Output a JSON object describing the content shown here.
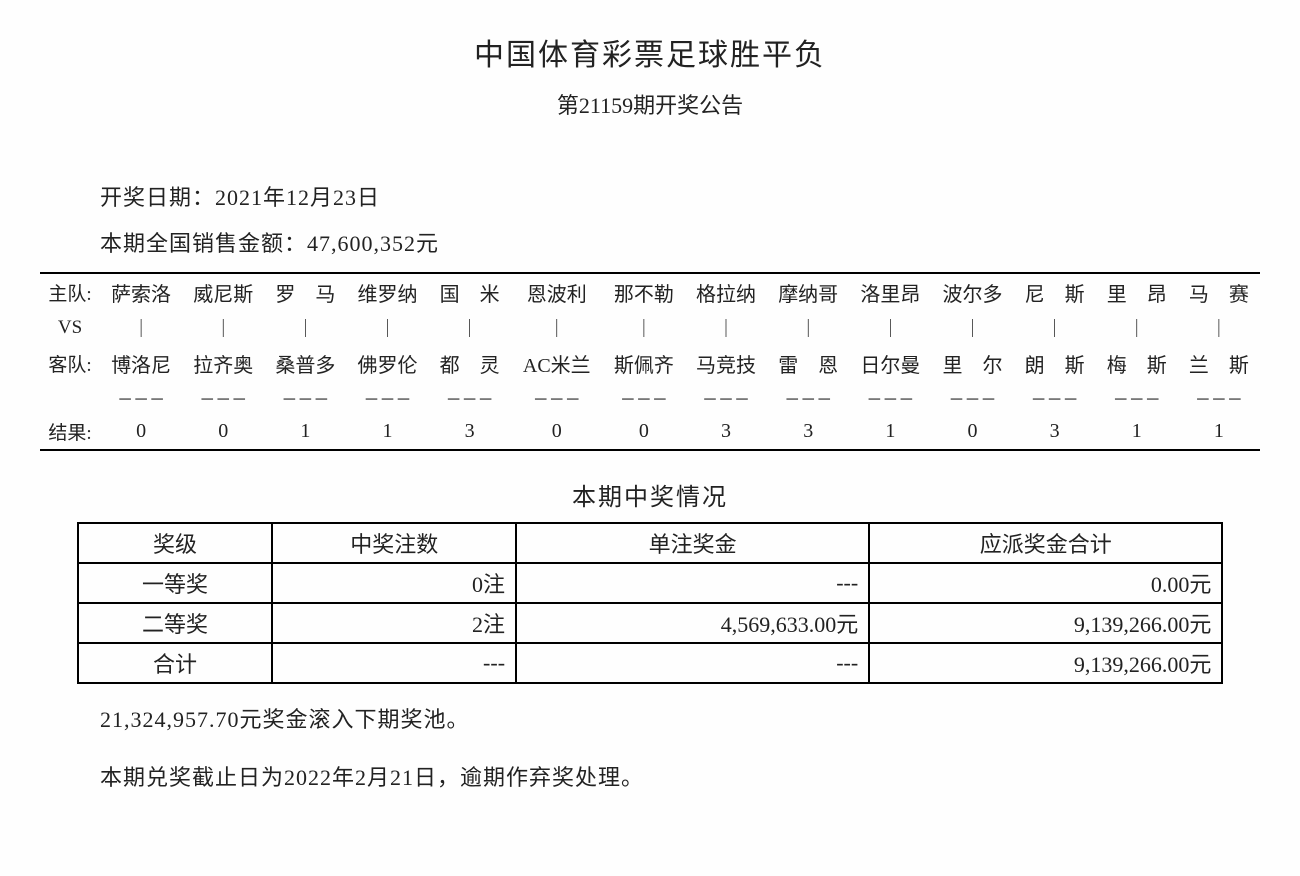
{
  "header": {
    "title": "中国体育彩票足球胜平负",
    "subtitle": "第21159期开奖公告"
  },
  "info": {
    "date_label": "开奖日期：",
    "date_value": "2021年12月23日",
    "sales_label": "本期全国销售金额：",
    "sales_value": "47,600,352元"
  },
  "match": {
    "row_labels": {
      "home": "主队:",
      "vs": "VS",
      "away": "客队:",
      "result": "结果:"
    },
    "vs_mark": "｜",
    "dash": "－－－",
    "columns": [
      {
        "home": "萨索洛",
        "away": "博洛尼",
        "result": "0"
      },
      {
        "home": "威尼斯",
        "away": "拉齐奥",
        "result": "0"
      },
      {
        "home": "罗　马",
        "away": "桑普多",
        "result": "1"
      },
      {
        "home": "维罗纳",
        "away": "佛罗伦",
        "result": "1"
      },
      {
        "home": "国　米",
        "away": "都　灵",
        "result": "3"
      },
      {
        "home": "恩波利",
        "away": "AC米兰",
        "result": "0"
      },
      {
        "home": "那不勒",
        "away": "斯佩齐",
        "result": "0"
      },
      {
        "home": "格拉纳",
        "away": "马竞技",
        "result": "3"
      },
      {
        "home": "摩纳哥",
        "away": "雷　恩",
        "result": "3"
      },
      {
        "home": "洛里昂",
        "away": "日尔曼",
        "result": "1"
      },
      {
        "home": "波尔多",
        "away": "里　尔",
        "result": "0"
      },
      {
        "home": "尼　斯",
        "away": "朗　斯",
        "result": "3"
      },
      {
        "home": "里　昂",
        "away": "梅　斯",
        "result": "1"
      },
      {
        "home": "马　赛",
        "away": "兰　斯",
        "result": "1"
      }
    ]
  },
  "prize": {
    "heading": "本期中奖情况",
    "headers": [
      "奖级",
      "中奖注数",
      "单注奖金",
      "应派奖金合计"
    ],
    "rows": [
      {
        "level": "一等奖",
        "count": "0注",
        "per": "---",
        "total": "0.00元"
      },
      {
        "level": "二等奖",
        "count": "2注",
        "per": "4,569,633.00元",
        "total": "9,139,266.00元"
      },
      {
        "level": "合计",
        "count": "---",
        "per": "---",
        "total": "9,139,266.00元"
      }
    ]
  },
  "footer": {
    "rollover": "21,324,957.70元奖金滚入下期奖池。",
    "deadline": "本期兑奖截止日为2022年2月21日，逾期作弃奖处理。"
  }
}
